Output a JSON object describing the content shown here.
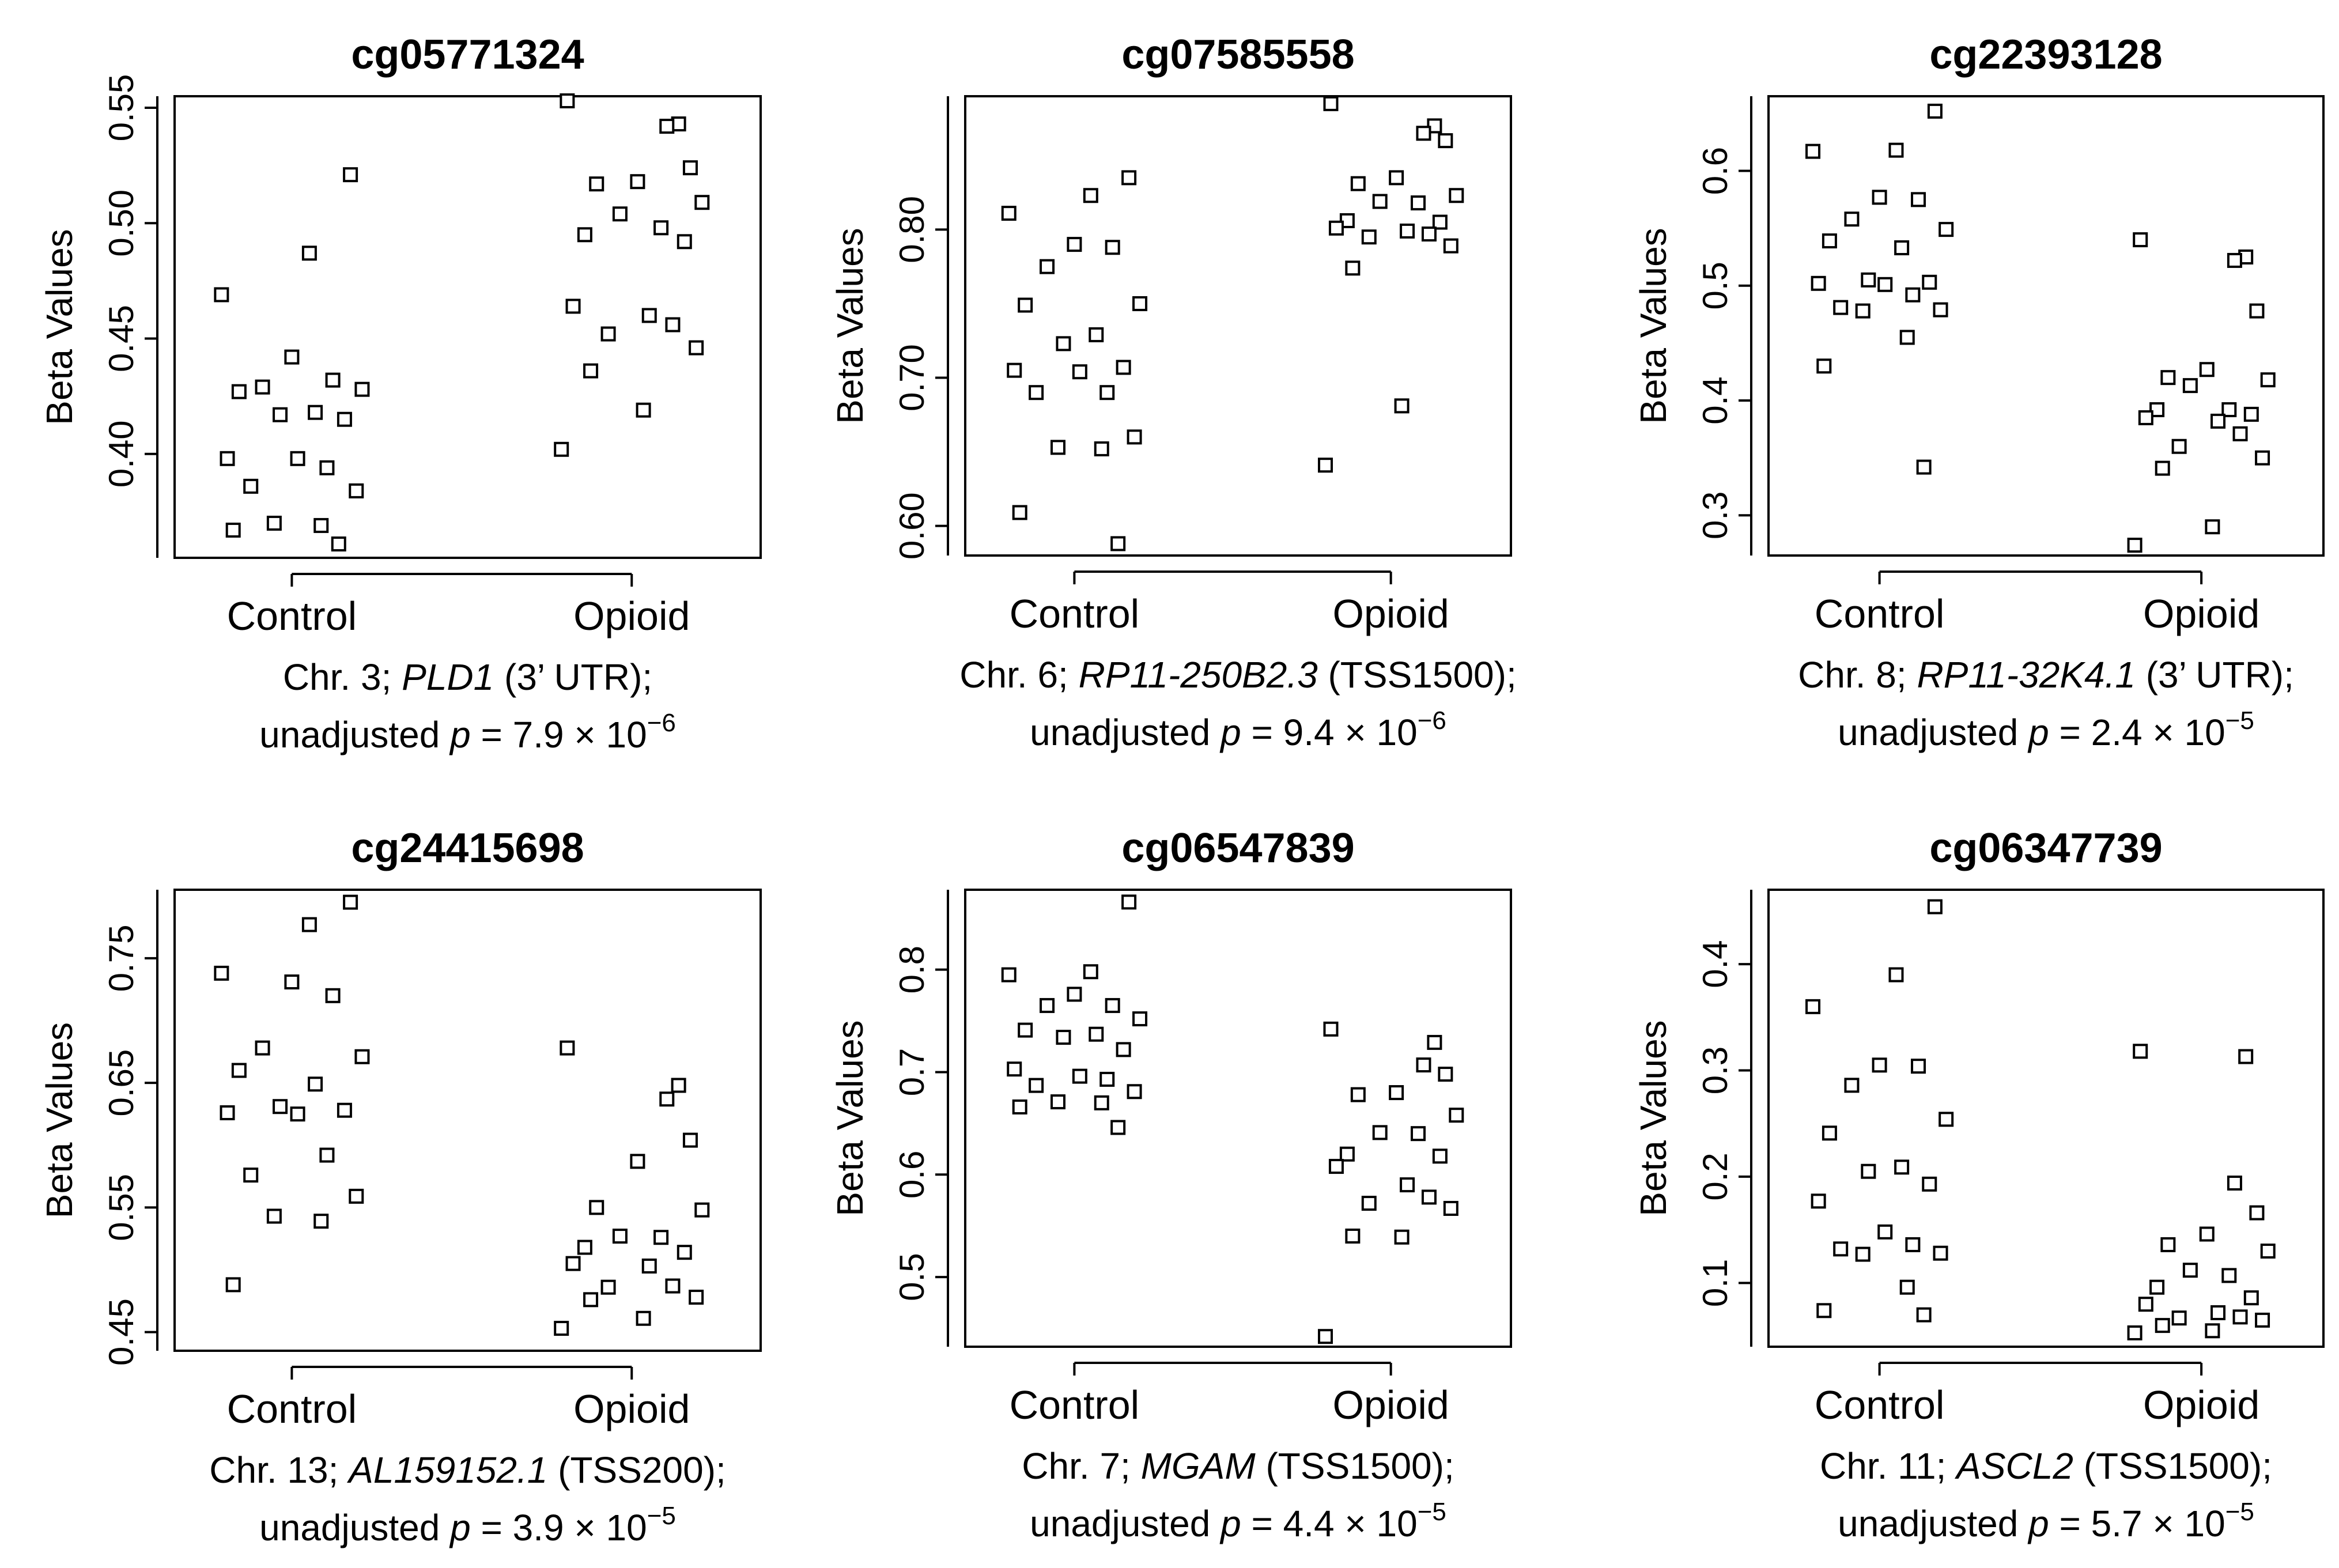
{
  "chart_data": [
    {
      "type": "scatter",
      "title": "cg05771324",
      "ylabel": "Beta Values",
      "categories": [
        "Control",
        "Opioid"
      ],
      "ylim": [
        0.355,
        0.555
      ],
      "yticks": [
        "0.40",
        "0.45",
        "0.50",
        "0.55"
      ],
      "series": [
        {
          "name": "Control",
          "values": [
            0.521,
            0.487,
            0.469,
            0.442,
            0.432,
            0.429,
            0.428,
            0.427,
            0.418,
            0.417,
            0.415,
            0.398,
            0.398,
            0.394,
            0.386,
            0.384,
            0.37,
            0.369,
            0.367,
            0.361
          ]
        },
        {
          "name": "Opioid",
          "values": [
            0.553,
            0.543,
            0.542,
            0.524,
            0.518,
            0.517,
            0.509,
            0.504,
            0.498,
            0.495,
            0.492,
            0.464,
            0.46,
            0.456,
            0.452,
            0.446,
            0.436,
            0.419,
            0.402
          ]
        }
      ],
      "caption": {
        "chr": "Chr. 3; ",
        "gene": "PLD1",
        "region": " (3’ UTR);",
        "p_prefix": "unadjusted ",
        "p_symbol": "p",
        "p_value": " = 7.9 × 10",
        "p_exp": "−6"
      }
    },
    {
      "type": "scatter",
      "title": "cg07585558",
      "ylabel": "Beta Values",
      "categories": [
        "Control",
        "Opioid"
      ],
      "ylim": [
        0.58,
        0.89
      ],
      "yticks": [
        "0.60",
        "0.70",
        "0.80"
      ],
      "series": [
        {
          "name": "Control",
          "values": [
            0.835,
            0.823,
            0.811,
            0.79,
            0.788,
            0.775,
            0.75,
            0.749,
            0.729,
            0.723,
            0.707,
            0.705,
            0.704,
            0.69,
            0.69,
            0.66,
            0.653,
            0.652,
            0.609,
            0.588
          ]
        },
        {
          "name": "Opioid",
          "values": [
            0.885,
            0.87,
            0.865,
            0.86,
            0.835,
            0.831,
            0.823,
            0.819,
            0.818,
            0.806,
            0.805,
            0.801,
            0.799,
            0.797,
            0.795,
            0.789,
            0.774,
            0.681,
            0.641
          ]
        }
      ],
      "caption": {
        "chr": "Chr. 6; ",
        "gene": "RP11-250B2.3",
        "region": " (TSS1500);",
        "p_prefix": "unadjusted ",
        "p_symbol": "p",
        "p_value": " = 9.4 × 10",
        "p_exp": "−6"
      }
    },
    {
      "type": "scatter",
      "title": "cg22393128",
      "ylabel": "Beta Values",
      "categories": [
        "Control",
        "Opioid"
      ],
      "ylim": [
        0.265,
        0.665
      ],
      "yticks": [
        "0.3",
        "0.4",
        "0.5",
        "0.6"
      ],
      "series": [
        {
          "name": "Control",
          "values": [
            0.652,
            0.618,
            0.617,
            0.577,
            0.575,
            0.558,
            0.549,
            0.539,
            0.533,
            0.505,
            0.503,
            0.502,
            0.501,
            0.492,
            0.481,
            0.479,
            0.478,
            0.455,
            0.43,
            0.342
          ]
        },
        {
          "name": "Opioid",
          "values": [
            0.54,
            0.525,
            0.522,
            0.478,
            0.427,
            0.42,
            0.418,
            0.413,
            0.392,
            0.392,
            0.388,
            0.385,
            0.382,
            0.371,
            0.36,
            0.35,
            0.341,
            0.29,
            0.274
          ]
        }
      ],
      "caption": {
        "chr": "Chr. 8; ",
        "gene": "RP11-32K4.1",
        "region": " (3’ UTR);",
        "p_prefix": "unadjusted ",
        "p_symbol": "p",
        "p_value": " = 2.4 × 10",
        "p_exp": "−5"
      }
    },
    {
      "type": "scatter",
      "title": "cg24415698",
      "ylabel": "Beta Values",
      "categories": [
        "Control",
        "Opioid"
      ],
      "ylim": [
        0.435,
        0.805
      ],
      "yticks": [
        "0.45",
        "0.55",
        "0.65",
        "0.75"
      ],
      "series": [
        {
          "name": "Control",
          "values": [
            0.795,
            0.777,
            0.738,
            0.731,
            0.72,
            0.678,
            0.671,
            0.66,
            0.649,
            0.631,
            0.628,
            0.626,
            0.625,
            0.592,
            0.576,
            0.559,
            0.543,
            0.539,
            0.488
          ]
        },
        {
          "name": "Opioid",
          "values": [
            0.678,
            0.648,
            0.637,
            0.604,
            0.587,
            0.55,
            0.548,
            0.527,
            0.526,
            0.518,
            0.514,
            0.505,
            0.503,
            0.487,
            0.486,
            0.478,
            0.476,
            0.461,
            0.453
          ]
        }
      ],
      "caption": {
        "chr": "Chr. 13; ",
        "gene": "AL159152.1",
        "region": " (TSS200);",
        "p_prefix": "unadjusted ",
        "p_symbol": "p",
        "p_value": " = 3.9 × 10",
        "p_exp": "−5"
      }
    },
    {
      "type": "scatter",
      "title": "cg06547839",
      "ylabel": "Beta Values",
      "categories": [
        "Control",
        "Opioid"
      ],
      "ylim": [
        0.432,
        0.878
      ],
      "yticks": [
        "0.5",
        "0.6",
        "0.7",
        "0.8"
      ],
      "series": [
        {
          "name": "Control",
          "values": [
            0.866,
            0.798,
            0.795,
            0.776,
            0.765,
            0.765,
            0.752,
            0.741,
            0.737,
            0.734,
            0.722,
            0.703,
            0.696,
            0.693,
            0.687,
            0.681,
            0.671,
            0.67,
            0.666,
            0.646
          ]
        },
        {
          "name": "Opioid",
          "values": [
            0.742,
            0.729,
            0.707,
            0.698,
            0.68,
            0.678,
            0.658,
            0.641,
            0.64,
            0.62,
            0.618,
            0.608,
            0.59,
            0.578,
            0.572,
            0.567,
            0.54,
            0.539,
            0.442
          ]
        }
      ],
      "caption": {
        "chr": "Chr. 7; ",
        "gene": "MGAM",
        "region": " (TSS1500);",
        "p_prefix": "unadjusted ",
        "p_symbol": "p",
        "p_value": " = 4.4 × 10",
        "p_exp": "−5"
      }
    },
    {
      "type": "scatter",
      "title": "cg06347739",
      "ylabel": "Beta Values",
      "categories": [
        "Control",
        "Opioid"
      ],
      "ylim": [
        0.04,
        0.47
      ],
      "yticks": [
        "0.1",
        "0.2",
        "0.3",
        "0.4"
      ],
      "series": [
        {
          "name": "Control",
          "values": [
            0.454,
            0.39,
            0.36,
            0.305,
            0.304,
            0.286,
            0.254,
            0.241,
            0.209,
            0.205,
            0.193,
            0.177,
            0.148,
            0.136,
            0.132,
            0.128,
            0.127,
            0.096,
            0.074,
            0.07
          ]
        },
        {
          "name": "Opioid",
          "values": [
            0.318,
            0.313,
            0.194,
            0.166,
            0.146,
            0.136,
            0.13,
            0.112,
            0.107,
            0.096,
            0.086,
            0.08,
            0.072,
            0.068,
            0.067,
            0.065,
            0.06,
            0.055,
            0.053
          ]
        }
      ],
      "caption": {
        "chr": "Chr. 11; ",
        "gene": "ASCL2",
        "region": " (TSS1500);",
        "p_prefix": "unadjusted ",
        "p_symbol": "p",
        "p_value": " = 5.7 × 10",
        "p_exp": "−5"
      }
    }
  ]
}
